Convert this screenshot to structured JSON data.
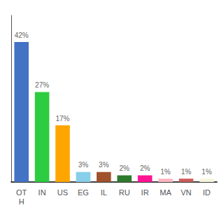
{
  "chart_data": {
    "type": "bar",
    "categories": [
      "OT\nH",
      "IN",
      "US",
      "EG",
      "IL",
      "RU",
      "IR",
      "MA",
      "VN",
      "ID"
    ],
    "values": [
      42,
      27,
      17,
      3,
      3,
      2,
      2,
      1,
      1,
      1
    ],
    "value_labels": [
      "42%",
      "27%",
      "17%",
      "3%",
      "3%",
      "2%",
      "2%",
      "1%",
      "1%",
      "1%"
    ],
    "colors": [
      "#4472c4",
      "#2ecc40",
      "#ffa500",
      "#87ceeb",
      "#a0522d",
      "#2d7a2d",
      "#ff1493",
      "#ffb6c1",
      "#cd5c5c",
      "#f5f5dc"
    ],
    "ylim": [
      0,
      50
    ],
    "grid": false,
    "data_labels": true,
    "tick_labels": "x"
  }
}
